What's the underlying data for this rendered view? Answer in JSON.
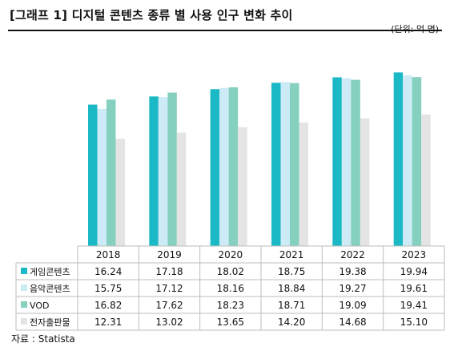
{
  "header": {
    "title": "[그래프 1] 디지털 콘텐츠 종류 별 사용 인구 변화 추이",
    "unit": "(단위: 억 명)"
  },
  "footer": {
    "source": "자료 : Statista"
  },
  "chart_data": {
    "type": "bar",
    "categories": [
      "2018",
      "2019",
      "2020",
      "2021",
      "2022",
      "2023"
    ],
    "series": [
      {
        "name": "게임콘텐츠",
        "color": "#1bb9c6",
        "values": [
          16.24,
          17.18,
          18.02,
          18.75,
          19.38,
          19.94
        ]
      },
      {
        "name": "음악콘텐츠",
        "color": "#cdeaf7",
        "values": [
          15.75,
          17.12,
          18.16,
          18.84,
          19.27,
          19.61
        ]
      },
      {
        "name": "VOD",
        "color": "#86d0bf",
        "values": [
          16.82,
          17.62,
          18.23,
          18.71,
          19.09,
          19.41
        ]
      },
      {
        "name": "전자출판물",
        "color": "#e4e4e4",
        "values": [
          12.31,
          13.02,
          13.65,
          14.2,
          14.68,
          15.1
        ]
      }
    ],
    "ylim": [
      0,
      22
    ],
    "data_table": true,
    "legend": "table-left",
    "grid": false
  }
}
